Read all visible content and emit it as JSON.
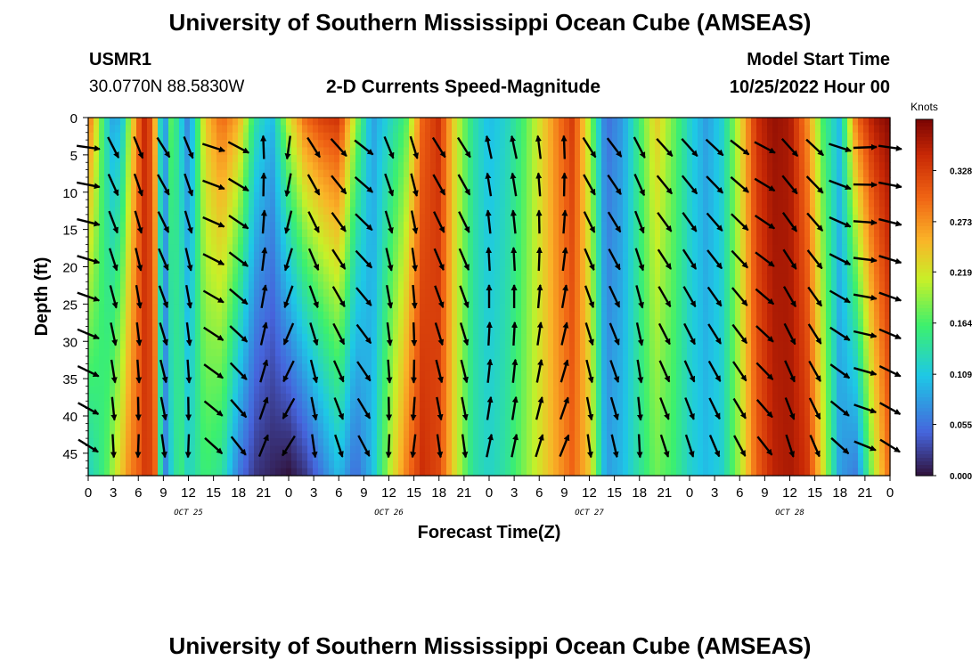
{
  "header": {
    "title": "University of Southern Mississippi Ocean Cube (AMSEAS)",
    "station": "USMR1",
    "coords": "30.0770N  88.5830W",
    "product": "2-D Currents Speed-Magnitude",
    "start_label": "Model Start Time",
    "start_value": "10/25/2022 Hour 00"
  },
  "footer": {
    "title": "University of Southern Mississippi Ocean Cube (AMSEAS)"
  },
  "chart_data": {
    "type": "heatmap",
    "title": "2-D Currents Speed-Magnitude",
    "xlabel": "Forecast Time(Z)",
    "ylabel": "Depth (ft)",
    "x_tick_labels": [
      "0",
      "3",
      "6",
      "9",
      "12",
      "15",
      "18",
      "21",
      "0",
      "3",
      "6",
      "9",
      "12",
      "15",
      "18",
      "21",
      "0",
      "3",
      "6",
      "9",
      "12",
      "15",
      "18",
      "21",
      "0",
      "3",
      "6",
      "9",
      "12",
      "15",
      "18",
      "21",
      "0"
    ],
    "x_hours_range": [
      0,
      96
    ],
    "day_labels": [
      {
        "label": "OCT 25",
        "hour": 12
      },
      {
        "label": "OCT 26",
        "hour": 36
      },
      {
        "label": "OCT 27",
        "hour": 60
      },
      {
        "label": "OCT 28",
        "hour": 84
      }
    ],
    "y_ticks": [
      0,
      5,
      10,
      15,
      20,
      25,
      30,
      35,
      40,
      45
    ],
    "ylim": [
      0,
      48
    ],
    "colorbar": {
      "label": "Knots",
      "ticks": [
        "0.328",
        "0.273",
        "0.219",
        "0.164",
        "0.109",
        "0.055",
        "0.000"
      ],
      "range": [
        0,
        0.383
      ]
    },
    "speed_profile": {
      "hours": [
        0,
        1,
        2,
        3,
        4,
        5,
        6,
        7,
        8,
        9,
        10,
        11,
        12,
        14,
        16,
        18,
        20,
        22,
        24,
        26,
        28,
        30,
        32,
        34,
        36,
        38,
        40,
        42,
        44,
        46,
        48,
        50,
        52,
        54,
        56,
        58,
        60,
        62,
        64,
        66,
        68,
        70,
        72,
        74,
        76,
        78,
        80,
        82,
        84,
        86,
        88,
        90,
        92,
        94,
        96
      ],
      "surface_knots": [
        0.3,
        0.22,
        0.14,
        0.08,
        0.1,
        0.2,
        0.3,
        0.36,
        0.25,
        0.05,
        0.18,
        0.12,
        0.06,
        0.24,
        0.3,
        0.26,
        0.14,
        0.1,
        0.22,
        0.3,
        0.33,
        0.34,
        0.2,
        0.08,
        0.12,
        0.16,
        0.3,
        0.34,
        0.22,
        0.14,
        0.1,
        0.12,
        0.16,
        0.22,
        0.28,
        0.33,
        0.2,
        0.05,
        0.08,
        0.16,
        0.24,
        0.18,
        0.12,
        0.08,
        0.12,
        0.22,
        0.34,
        0.37,
        0.36,
        0.28,
        0.16,
        0.1,
        0.3,
        0.36,
        0.38
      ],
      "bottom_knots": [
        0.12,
        0.14,
        0.16,
        0.2,
        0.24,
        0.28,
        0.3,
        0.34,
        0.3,
        0.05,
        0.12,
        0.16,
        0.12,
        0.16,
        0.14,
        0.06,
        0.02,
        0.01,
        0.0,
        0.02,
        0.06,
        0.1,
        0.05,
        0.1,
        0.2,
        0.28,
        0.34,
        0.32,
        0.22,
        0.14,
        0.12,
        0.14,
        0.18,
        0.22,
        0.26,
        0.3,
        0.24,
        0.08,
        0.1,
        0.14,
        0.18,
        0.16,
        0.12,
        0.1,
        0.12,
        0.2,
        0.3,
        0.35,
        0.36,
        0.34,
        0.22,
        0.08,
        0.06,
        0.2,
        0.3
      ]
    },
    "current_vectors": {
      "hours": [
        0,
        3,
        6,
        9,
        12,
        15,
        18,
        21,
        24,
        27,
        30,
        33,
        36,
        39,
        42,
        45,
        48,
        51,
        54,
        57,
        60,
        63,
        66,
        69,
        72,
        75,
        78,
        81,
        84,
        87,
        90,
        93,
        96
      ],
      "direction_deg": [
        110,
        165,
        170,
        160,
        170,
        120,
        130,
        10,
        200,
        160,
        150,
        140,
        170,
        175,
        160,
        160,
        0,
        0,
        5,
        10,
        160,
        155,
        165,
        150,
        150,
        145,
        140,
        130,
        150,
        145,
        120,
        100,
        110
      ],
      "depths_ft": [
        4,
        9,
        14,
        19,
        24,
        29,
        34,
        39,
        44
      ]
    }
  }
}
